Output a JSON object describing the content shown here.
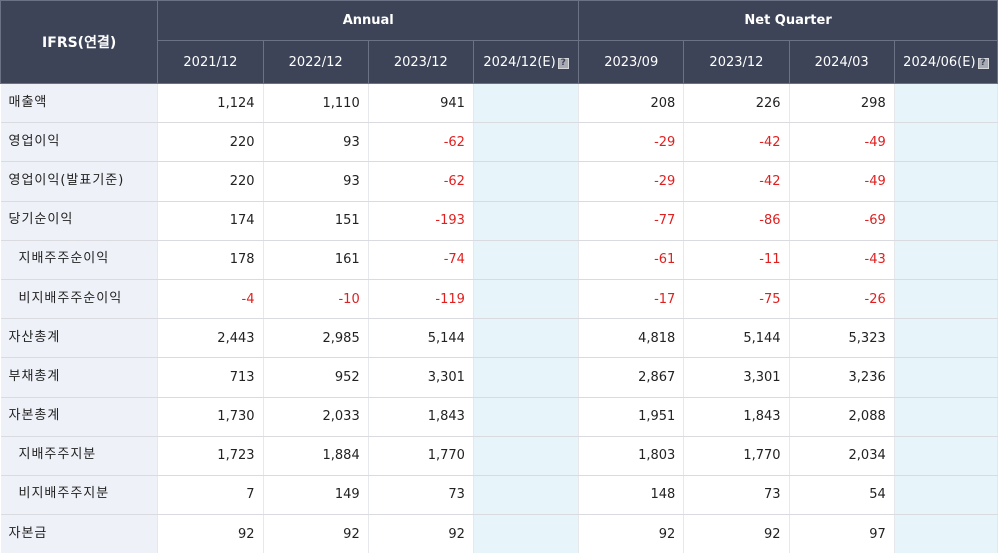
{
  "header": {
    "label": "IFRS(연결)",
    "group_annual": "Annual",
    "group_quarter": "Net Quarter",
    "annual_periods": [
      "2021/12",
      "2022/12",
      "2023/12",
      "2024/12(E)"
    ],
    "quarter_periods": [
      "2023/09",
      "2023/12",
      "2024/03",
      "2024/06(E)"
    ],
    "estimate_icon": "question-icon",
    "estimate_icon_glyph": "?"
  },
  "rows": [
    {
      "label": "매출액",
      "sub": false,
      "annual": [
        "1,124",
        "1,110",
        "941",
        ""
      ],
      "quarter": [
        "208",
        "226",
        "298",
        ""
      ]
    },
    {
      "label": "영업이익",
      "sub": false,
      "annual": [
        "220",
        "93",
        "-62",
        ""
      ],
      "quarter": [
        "-29",
        "-42",
        "-49",
        ""
      ]
    },
    {
      "label": "영업이익(발표기준)",
      "sub": false,
      "annual": [
        "220",
        "93",
        "-62",
        ""
      ],
      "quarter": [
        "-29",
        "-42",
        "-49",
        ""
      ]
    },
    {
      "label": "당기순이익",
      "sub": false,
      "annual": [
        "174",
        "151",
        "-193",
        ""
      ],
      "quarter": [
        "-77",
        "-86",
        "-69",
        ""
      ]
    },
    {
      "label": "지배주주순이익",
      "sub": true,
      "annual": [
        "178",
        "161",
        "-74",
        ""
      ],
      "quarter": [
        "-61",
        "-11",
        "-43",
        ""
      ]
    },
    {
      "label": "비지배주주순이익",
      "sub": true,
      "annual": [
        "-4",
        "-10",
        "-119",
        ""
      ],
      "quarter": [
        "-17",
        "-75",
        "-26",
        ""
      ]
    },
    {
      "label": "자산총계",
      "sub": false,
      "annual": [
        "2,443",
        "2,985",
        "5,144",
        ""
      ],
      "quarter": [
        "4,818",
        "5,144",
        "5,323",
        ""
      ]
    },
    {
      "label": "부채총계",
      "sub": false,
      "annual": [
        "713",
        "952",
        "3,301",
        ""
      ],
      "quarter": [
        "2,867",
        "3,301",
        "3,236",
        ""
      ]
    },
    {
      "label": "자본총계",
      "sub": false,
      "annual": [
        "1,730",
        "2,033",
        "1,843",
        ""
      ],
      "quarter": [
        "1,951",
        "1,843",
        "2,088",
        ""
      ]
    },
    {
      "label": "지배주주지분",
      "sub": true,
      "annual": [
        "1,723",
        "1,884",
        "1,770",
        ""
      ],
      "quarter": [
        "1,803",
        "1,770",
        "2,034",
        ""
      ]
    },
    {
      "label": "비지배주주지분",
      "sub": true,
      "annual": [
        "7",
        "149",
        "73",
        ""
      ],
      "quarter": [
        "148",
        "73",
        "54",
        ""
      ]
    },
    {
      "label": "자본금",
      "sub": false,
      "annual": [
        "92",
        "92",
        "92",
        ""
      ],
      "quarter": [
        "92",
        "92",
        "97",
        ""
      ]
    }
  ],
  "colors": {
    "header_bg": "#3d4458",
    "label_bg": "#eef1f8",
    "estimate_bg": "#e7f4fa",
    "negative": "#e02020"
  }
}
